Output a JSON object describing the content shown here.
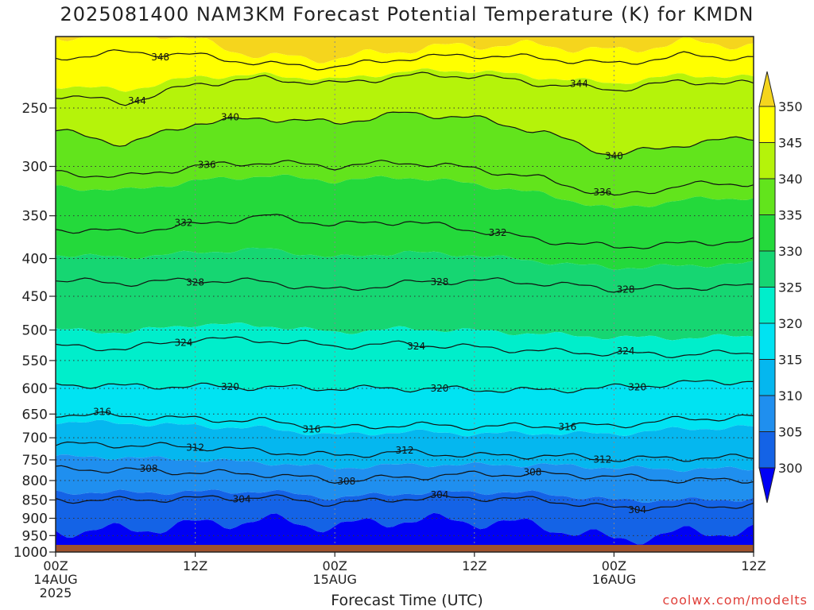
{
  "chart_data": {
    "type": "contour",
    "title": "2025081400 NAM3KM Forecast Potential Temperature (K) for KMDN",
    "xlabel": "Forecast Time (UTC)",
    "credit": "coolwx.com/modelts",
    "x_ticks": [
      {
        "hour": 0,
        "lines": [
          "00Z",
          "14AUG",
          "2025"
        ]
      },
      {
        "hour": 12,
        "lines": [
          "12Z"
        ]
      },
      {
        "hour": 24,
        "lines": [
          "00Z",
          "15AUG"
        ]
      },
      {
        "hour": 36,
        "lines": [
          "12Z"
        ]
      },
      {
        "hour": 48,
        "lines": [
          "00Z",
          "16AUG"
        ]
      },
      {
        "hour": 60,
        "lines": [
          "12Z"
        ]
      }
    ],
    "xlim": [
      0,
      60
    ],
    "y_ticks": [
      250,
      300,
      350,
      400,
      450,
      500,
      550,
      600,
      650,
      700,
      750,
      800,
      850,
      900,
      950,
      1000
    ],
    "ylim_hPa": [
      200,
      1000
    ],
    "y_scale": "log-pressure",
    "colorbar": {
      "levels": [
        300,
        305,
        310,
        315,
        320,
        325,
        330,
        335,
        340,
        345,
        350
      ],
      "colors": [
        "#0000f5",
        "#1463e6",
        "#1f8fef",
        "#05b7ef",
        "#00e3f2",
        "#00eecb",
        "#16d672",
        "#24d93b",
        "#62e41c",
        "#b5f30a",
        "#ffff00",
        "#f5d51d"
      ],
      "extend": "both"
    },
    "contour_interval": 4,
    "contour_levels": [
      {
        "value": 348,
        "label_hours": [
          9
        ],
        "p_at": [
          [
            0,
            214
          ],
          [
            6,
            210
          ],
          [
            12,
            212
          ],
          [
            18,
            218
          ],
          [
            24,
            220
          ],
          [
            30,
            214
          ],
          [
            36,
            212
          ],
          [
            42,
            214
          ],
          [
            48,
            218
          ],
          [
            54,
            212
          ],
          [
            60,
            214
          ]
        ]
      },
      {
        "value": 344,
        "label_hours": [
          7,
          45
        ],
        "p_at": [
          [
            0,
            240
          ],
          [
            6,
            246
          ],
          [
            12,
            232
          ],
          [
            18,
            228
          ],
          [
            24,
            232
          ],
          [
            30,
            226
          ],
          [
            36,
            226
          ],
          [
            42,
            232
          ],
          [
            48,
            236
          ],
          [
            54,
            230
          ],
          [
            60,
            232
          ]
        ]
      },
      {
        "value": 340,
        "label_hours": [
          15,
          48
        ],
        "p_at": [
          [
            0,
            268
          ],
          [
            6,
            280
          ],
          [
            12,
            262
          ],
          [
            18,
            258
          ],
          [
            24,
            262
          ],
          [
            30,
            254
          ],
          [
            36,
            258
          ],
          [
            42,
            270
          ],
          [
            48,
            290
          ],
          [
            54,
            280
          ],
          [
            60,
            274
          ]
        ]
      },
      {
        "value": 336,
        "label_hours": [
          13,
          47
        ],
        "p_at": [
          [
            0,
            306
          ],
          [
            6,
            310
          ],
          [
            12,
            300
          ],
          [
            18,
            296
          ],
          [
            24,
            300
          ],
          [
            30,
            296
          ],
          [
            36,
            302
          ],
          [
            42,
            312
          ],
          [
            48,
            330
          ],
          [
            54,
            318
          ],
          [
            60,
            316
          ]
        ]
      },
      {
        "value": 332,
        "label_hours": [
          11,
          38
        ],
        "p_at": [
          [
            0,
            365
          ],
          [
            6,
            368
          ],
          [
            12,
            360
          ],
          [
            18,
            350
          ],
          [
            24,
            360
          ],
          [
            30,
            356
          ],
          [
            36,
            366
          ],
          [
            42,
            378
          ],
          [
            48,
            386
          ],
          [
            54,
            382
          ],
          [
            60,
            378
          ]
        ]
      },
      {
        "value": 328,
        "label_hours": [
          12,
          33,
          49
        ],
        "p_at": [
          [
            0,
            428
          ],
          [
            6,
            432
          ],
          [
            12,
            428
          ],
          [
            18,
            430
          ],
          [
            24,
            442
          ],
          [
            30,
            432
          ],
          [
            36,
            428
          ],
          [
            42,
            432
          ],
          [
            48,
            440
          ],
          [
            54,
            438
          ],
          [
            60,
            436
          ]
        ]
      },
      {
        "value": 324,
        "label_hours": [
          11,
          31,
          49
        ],
        "p_at": [
          [
            0,
            526
          ],
          [
            6,
            530
          ],
          [
            12,
            514
          ],
          [
            18,
            516
          ],
          [
            24,
            526
          ],
          [
            30,
            522
          ],
          [
            36,
            528
          ],
          [
            42,
            534
          ],
          [
            48,
            538
          ],
          [
            54,
            540
          ],
          [
            60,
            536
          ]
        ]
      },
      {
        "value": 320,
        "label_hours": [
          15,
          33,
          50
        ],
        "p_at": [
          [
            0,
            592
          ],
          [
            6,
            596
          ],
          [
            12,
            596
          ],
          [
            18,
            598
          ],
          [
            24,
            600
          ],
          [
            30,
            600
          ],
          [
            36,
            602
          ],
          [
            42,
            604
          ],
          [
            48,
            598
          ],
          [
            54,
            590
          ],
          [
            60,
            586
          ]
        ]
      },
      {
        "value": 316,
        "label_hours": [
          4,
          22,
          44
        ],
        "p_at": [
          [
            0,
            650
          ],
          [
            6,
            654
          ],
          [
            12,
            660
          ],
          [
            18,
            664
          ],
          [
            24,
            680
          ],
          [
            30,
            672
          ],
          [
            36,
            676
          ],
          [
            42,
            674
          ],
          [
            48,
            674
          ],
          [
            54,
            660
          ],
          [
            60,
            656
          ]
        ]
      },
      {
        "value": 312,
        "label_hours": [
          12,
          30,
          47
        ],
        "p_at": [
          [
            0,
            714
          ],
          [
            6,
            716
          ],
          [
            12,
            720
          ],
          [
            18,
            730
          ],
          [
            24,
            740
          ],
          [
            30,
            732
          ],
          [
            36,
            740
          ],
          [
            42,
            740
          ],
          [
            48,
            748
          ],
          [
            54,
            746
          ],
          [
            60,
            744
          ]
        ]
      },
      {
        "value": 308,
        "label_hours": [
          8,
          25,
          41
        ],
        "p_at": [
          [
            0,
            772
          ],
          [
            6,
            774
          ],
          [
            12,
            780
          ],
          [
            18,
            784
          ],
          [
            24,
            800
          ],
          [
            30,
            792
          ],
          [
            36,
            784
          ],
          [
            42,
            784
          ],
          [
            48,
            790
          ],
          [
            54,
            800
          ],
          [
            60,
            798
          ]
        ]
      },
      {
        "value": 304,
        "label_hours": [
          16,
          33,
          50
        ],
        "p_at": [
          [
            0,
            850
          ],
          [
            6,
            850
          ],
          [
            12,
            846
          ],
          [
            18,
            842
          ],
          [
            24,
            860
          ],
          [
            30,
            846
          ],
          [
            36,
            844
          ],
          [
            42,
            850
          ],
          [
            48,
            872
          ],
          [
            54,
            868
          ],
          [
            60,
            864
          ]
        ]
      }
    ],
    "ground_color": "#a0522d"
  }
}
